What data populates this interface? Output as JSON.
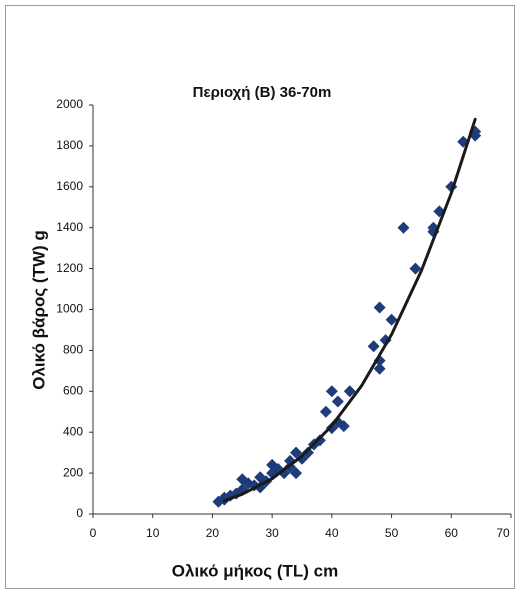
{
  "chart_data": {
    "type": "scatter",
    "title": "Περιοχή (Β) 36-70m",
    "x_label": "Ολικό μήκος (TL) cm",
    "y_label": "Ολικό βάρος (TW) g",
    "xlim": [
      0,
      70
    ],
    "xticks": [
      0,
      10,
      20,
      30,
      40,
      50,
      60,
      70
    ],
    "ylim": [
      0,
      2000
    ],
    "yticks": [
      0,
      200,
      400,
      600,
      800,
      1000,
      1200,
      1400,
      1600,
      1800,
      2000
    ],
    "grid": false,
    "series": [
      {
        "color": "#1f3c7a",
        "marker": "diamond",
        "x": [
          21,
          22,
          22,
          23,
          24,
          25,
          25,
          26,
          27,
          28,
          28,
          29,
          30,
          30,
          31,
          32,
          33,
          33,
          34,
          34,
          35,
          36,
          37,
          38,
          39,
          40,
          40,
          41,
          41,
          42,
          43,
          47,
          48,
          48,
          48,
          49,
          50,
          52,
          54,
          57,
          57,
          58,
          60,
          62,
          64,
          64
        ],
        "values": [
          60,
          80,
          70,
          90,
          100,
          170,
          120,
          150,
          140,
          130,
          180,
          160,
          200,
          240,
          220,
          200,
          230,
          260,
          300,
          200,
          270,
          300,
          340,
          360,
          500,
          420,
          600,
          550,
          450,
          430,
          600,
          820,
          750,
          710,
          1010,
          850,
          950,
          1400,
          1200,
          1400,
          1380,
          1480,
          1600,
          1820,
          1850,
          1870
        ]
      },
      {
        "color": "#1a1a1a",
        "marker": "line",
        "x": [
          22,
          25,
          30,
          35,
          40,
          45,
          50,
          55,
          60,
          64
        ],
        "values": [
          65,
          97,
          173,
          283,
          432,
          628,
          878,
          1190,
          1569,
          1930
        ]
      }
    ]
  }
}
